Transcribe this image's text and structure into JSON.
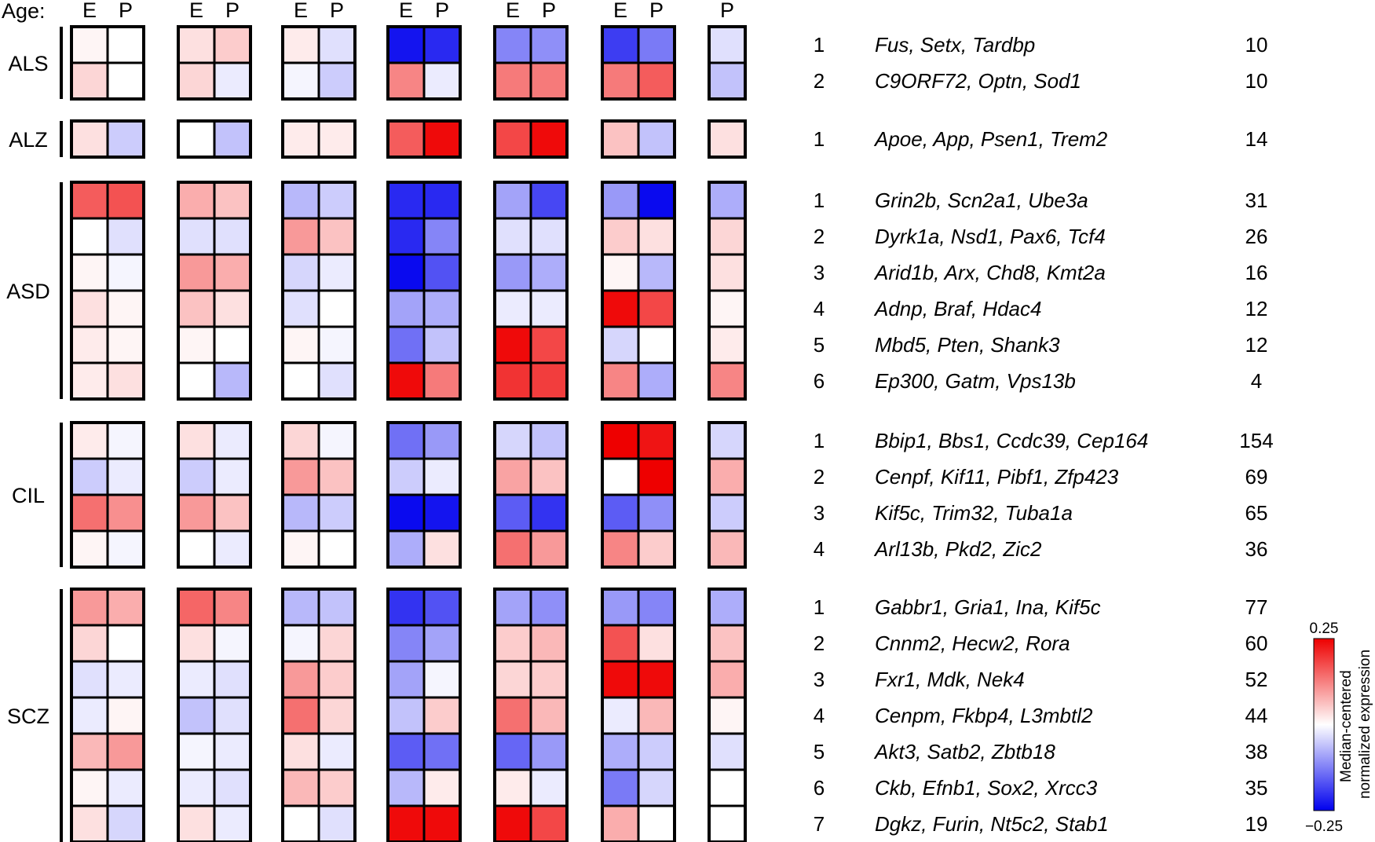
{
  "chart_data": {
    "type": "heatmap",
    "age_label": "Age:",
    "columns": [
      {
        "ages": [
          "E",
          "P"
        ]
      },
      {
        "ages": [
          "E",
          "P"
        ]
      },
      {
        "ages": [
          "E",
          "P"
        ]
      },
      {
        "ages": [
          "E",
          "P"
        ]
      },
      {
        "ages": [
          "E",
          "P"
        ]
      },
      {
        "ages": [
          "E",
          "P"
        ]
      },
      {
        "ages": [
          "P"
        ]
      }
    ],
    "groups": [
      {
        "label": "ALS",
        "rows": [
          {
            "index": "1",
            "genes": "Fus, Setx, Tardbp",
            "count": "10",
            "values": [
              [
                0.01,
                0.0
              ],
              [
                0.03,
                0.05
              ],
              [
                0.02,
                -0.03
              ],
              [
                -0.23,
                -0.21
              ],
              [
                -0.12,
                -0.11
              ],
              [
                -0.19,
                -0.13
              ],
              [
                -0.03
              ]
            ]
          },
          {
            "index": "2",
            "genes": "C9ORF72, Optn, Sod1",
            "count": "10",
            "values": [
              [
                0.04,
                0.0
              ],
              [
                0.04,
                -0.02
              ],
              [
                -0.01,
                -0.05
              ],
              [
                0.12,
                -0.02
              ],
              [
                0.13,
                0.13
              ],
              [
                0.13,
                0.16
              ],
              [
                -0.06
              ]
            ]
          }
        ]
      },
      {
        "label": "ALZ",
        "rows": [
          {
            "index": "1",
            "genes": "Apoe, App, Psen1, Trem2",
            "count": "14",
            "values": [
              [
                0.03,
                -0.05
              ],
              [
                0.0,
                -0.06
              ],
              [
                0.02,
                0.02
              ],
              [
                0.16,
                0.24
              ],
              [
                0.18,
                0.24
              ],
              [
                0.06,
                -0.06
              ],
              [
                0.03
              ]
            ]
          }
        ]
      },
      {
        "label": "ASD",
        "rows": [
          {
            "index": "1",
            "genes": "Grin2b, Scn2a1, Ube3a",
            "count": "31",
            "values": [
              [
                0.16,
                0.17
              ],
              [
                0.08,
                0.06
              ],
              [
                -0.07,
                -0.05
              ],
              [
                -0.21,
                -0.21
              ],
              [
                -0.09,
                -0.18
              ],
              [
                -0.1,
                -0.24
              ],
              [
                -0.08
              ]
            ]
          },
          {
            "index": "2",
            "genes": "Dyrk1a, Nsd1, Pax6, Tcf4",
            "count": "26",
            "values": [
              [
                0.0,
                -0.03
              ],
              [
                -0.03,
                -0.03
              ],
              [
                0.1,
                0.06
              ],
              [
                -0.21,
                -0.12
              ],
              [
                -0.03,
                -0.03
              ],
              [
                0.05,
                0.03
              ],
              [
                0.04
              ]
            ]
          },
          {
            "index": "3",
            "genes": "Arid1b, Arx, Chd8, Kmt2a",
            "count": "16",
            "values": [
              [
                0.01,
                -0.01
              ],
              [
                0.1,
                0.08
              ],
              [
                -0.04,
                -0.02
              ],
              [
                -0.24,
                -0.17
              ],
              [
                -0.1,
                -0.08
              ],
              [
                0.01,
                -0.07
              ],
              [
                0.03
              ]
            ]
          },
          {
            "index": "4",
            "genes": "Adnp, Braf, Hdac4",
            "count": "12",
            "values": [
              [
                0.03,
                0.01
              ],
              [
                0.06,
                0.03
              ],
              [
                -0.03,
                0.0
              ],
              [
                -0.09,
                -0.08
              ],
              [
                -0.02,
                -0.02
              ],
              [
                0.24,
                0.18
              ],
              [
                0.01
              ]
            ]
          },
          {
            "index": "5",
            "genes": "Mbd5, Pten, Shank3",
            "count": "12",
            "values": [
              [
                0.02,
                0.01
              ],
              [
                0.01,
                0.0
              ],
              [
                0.01,
                -0.01
              ],
              [
                -0.14,
                -0.06
              ],
              [
                0.24,
                0.18
              ],
              [
                -0.04,
                0.0
              ],
              [
                0.02
              ]
            ]
          },
          {
            "index": "6",
            "genes": "Ep300, Gatm, Vps13b",
            "count": "4",
            "values": [
              [
                0.02,
                0.03
              ],
              [
                0.0,
                -0.07
              ],
              [
                0.0,
                -0.03
              ],
              [
                0.24,
                0.13
              ],
              [
                0.2,
                0.19
              ],
              [
                0.12,
                -0.08
              ],
              [
                0.12
              ]
            ]
          }
        ]
      },
      {
        "label": "CIL",
        "rows": [
          {
            "index": "1",
            "genes": "Bbip1, Bbs1, Ccdc39, Cep164",
            "count": "154",
            "values": [
              [
                0.02,
                -0.01
              ],
              [
                0.03,
                -0.02
              ],
              [
                0.04,
                -0.01
              ],
              [
                -0.14,
                -0.1
              ],
              [
                -0.04,
                -0.06
              ],
              [
                0.25,
                0.23
              ],
              [
                -0.04
              ]
            ]
          },
          {
            "index": "2",
            "genes": "Cenpf, Kif11, Pibf1, Zfp423",
            "count": "69",
            "values": [
              [
                -0.05,
                -0.02
              ],
              [
                -0.05,
                -0.02
              ],
              [
                0.1,
                0.06
              ],
              [
                -0.05,
                -0.02
              ],
              [
                0.09,
                0.06
              ],
              [
                0.0,
                0.25
              ],
              [
                0.08
              ]
            ]
          },
          {
            "index": "3",
            "genes": "Kif5c, Trim32, Tuba1a",
            "count": "65",
            "values": [
              [
                0.14,
                0.11
              ],
              [
                0.1,
                0.06
              ],
              [
                -0.07,
                -0.05
              ],
              [
                -0.24,
                -0.23
              ],
              [
                -0.16,
                -0.2
              ],
              [
                -0.16,
                -0.11
              ],
              [
                -0.05
              ]
            ]
          },
          {
            "index": "4",
            "genes": "Arl13b, Pkd2, Zic2",
            "count": "36",
            "values": [
              [
                0.01,
                -0.01
              ],
              [
                0.0,
                -0.02
              ],
              [
                0.01,
                0.0
              ],
              [
                -0.08,
                0.03
              ],
              [
                0.14,
                0.1
              ],
              [
                0.12,
                0.05
              ],
              [
                0.07
              ]
            ]
          }
        ]
      },
      {
        "label": "SCZ",
        "rows": [
          {
            "index": "1",
            "genes": "Gabbr1, Gria1, Ina, Kif5c",
            "count": "77",
            "values": [
              [
                0.1,
                0.08
              ],
              [
                0.15,
                0.12
              ],
              [
                -0.07,
                -0.06
              ],
              [
                -0.2,
                -0.17
              ],
              [
                -0.09,
                -0.11
              ],
              [
                -0.1,
                -0.12
              ],
              [
                -0.08
              ]
            ]
          },
          {
            "index": "2",
            "genes": "Cnnm2, Hecw2, Rora",
            "count": "60",
            "values": [
              [
                0.04,
                0.0
              ],
              [
                0.03,
                -0.01
              ],
              [
                -0.01,
                0.04
              ],
              [
                -0.12,
                -0.09
              ],
              [
                0.05,
                0.07
              ],
              [
                0.17,
                0.03
              ],
              [
                0.06
              ]
            ]
          },
          {
            "index": "3",
            "genes": "Fxr1, Mdk, Nek4",
            "count": "52",
            "values": [
              [
                -0.03,
                -0.02
              ],
              [
                -0.02,
                -0.03
              ],
              [
                0.1,
                0.05
              ],
              [
                -0.09,
                -0.01
              ],
              [
                0.04,
                0.05
              ],
              [
                0.24,
                0.24
              ],
              [
                0.08
              ]
            ]
          },
          {
            "index": "4",
            "genes": "Cenpm, Fkbp4, L3mbtl2",
            "count": "44",
            "values": [
              [
                -0.02,
                0.01
              ],
              [
                -0.06,
                -0.03
              ],
              [
                0.14,
                0.04
              ],
              [
                -0.06,
                0.05
              ],
              [
                0.14,
                0.07
              ],
              [
                -0.02,
                0.07
              ],
              [
                0.01
              ]
            ]
          },
          {
            "index": "5",
            "genes": "Akt3, Satb2, Zbtb18",
            "count": "38",
            "values": [
              [
                0.07,
                0.1
              ],
              [
                -0.01,
                -0.02
              ],
              [
                0.03,
                -0.02
              ],
              [
                -0.16,
                -0.14
              ],
              [
                -0.15,
                -0.1
              ],
              [
                -0.08,
                -0.05
              ],
              [
                -0.03
              ]
            ]
          },
          {
            "index": "6",
            "genes": "Ckb, Efnb1, Sox2, Xrcc3",
            "count": "35",
            "values": [
              [
                0.01,
                -0.02
              ],
              [
                -0.02,
                -0.03
              ],
              [
                0.07,
                0.05
              ],
              [
                -0.07,
                0.02
              ],
              [
                0.02,
                -0.02
              ],
              [
                -0.13,
                -0.04
              ],
              [
                0.0
              ]
            ]
          },
          {
            "index": "7",
            "genes": "Dgkz, Furin, Nt5c2, Stab1",
            "count": "19",
            "values": [
              [
                0.03,
                -0.04
              ],
              [
                0.03,
                -0.02
              ],
              [
                0.0,
                -0.03
              ],
              [
                0.24,
                0.24
              ],
              [
                0.24,
                0.18
              ],
              [
                0.08,
                0.0
              ],
              [
                0.0
              ]
            ]
          }
        ]
      }
    ],
    "colorbar": {
      "max": 0.25,
      "min": -0.25,
      "max_label": "0.25",
      "min_label": "−0.25",
      "title_lines": [
        "Median-centered",
        "normalized expression"
      ],
      "colors": {
        "high": "#ee0000",
        "mid": "#ffffff",
        "low": "#0000ee"
      }
    }
  }
}
